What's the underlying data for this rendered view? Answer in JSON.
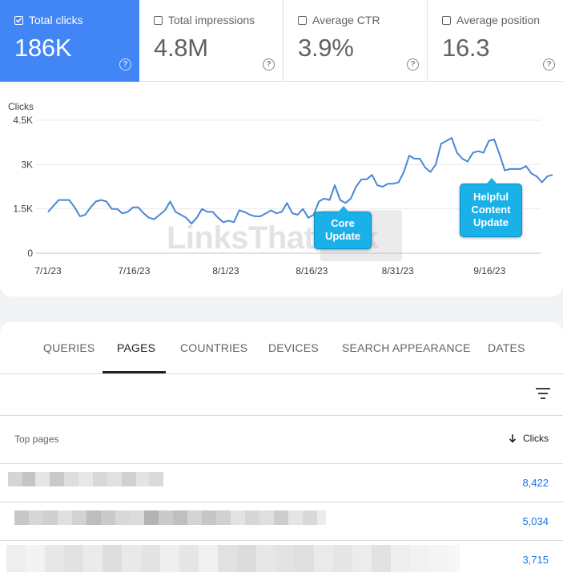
{
  "metrics": [
    {
      "label": "Total clicks",
      "value": "186K",
      "checked": true
    },
    {
      "label": "Total impressions",
      "value": "4.8M",
      "checked": false
    },
    {
      "label": "Average CTR",
      "value": "3.9%",
      "checked": false
    },
    {
      "label": "Average position",
      "value": "16.3",
      "checked": false
    }
  ],
  "help_glyph": "?",
  "chart_data": {
    "type": "line",
    "ylabel": "Clicks",
    "y_ticks": [
      "0",
      "1.5K",
      "3K",
      "4.5K"
    ],
    "y_tick_values": [
      0,
      1500,
      3000,
      4500
    ],
    "ylim": [
      0,
      4500
    ],
    "x_tick_labels": [
      "7/1/23",
      "7/16/23",
      "8/1/23",
      "8/16/23",
      "8/31/23",
      "9/16/23"
    ],
    "x_tick_days": [
      0,
      15,
      31,
      46,
      61,
      77
    ],
    "xlim_days": [
      0,
      88
    ],
    "grid": true,
    "line_color": "#4a86d8",
    "series": [
      {
        "values": [
          1400,
          1600,
          1800,
          1800,
          1800,
          1550,
          1250,
          1300,
          1550,
          1750,
          1800,
          1750,
          1500,
          1500,
          1350,
          1400,
          1550,
          1550,
          1350,
          1200,
          1150,
          1300,
          1450,
          1750,
          1400,
          1300,
          1200,
          1000,
          1200,
          1500,
          1400,
          1400,
          1200,
          1050,
          1100,
          1050,
          1450,
          1400,
          1300,
          1250,
          1250,
          1350,
          1450,
          1350,
          1400,
          1700,
          1350,
          1300,
          1500,
          1200,
          1300,
          1750,
          1850,
          1800,
          2300,
          1800,
          1700,
          1850,
          2250,
          2500,
          2500,
          2650,
          2300,
          2250,
          2350,
          2350,
          2400,
          2750,
          3300,
          3200,
          3200,
          2900,
          2750,
          3000,
          3700,
          3800,
          3900,
          3400,
          3200,
          3100,
          3400,
          3450,
          3400,
          3800,
          3850,
          3350,
          2800,
          2850,
          2850,
          2850,
          2950,
          2700,
          2600,
          2400,
          2600,
          2650
        ]
      }
    ]
  },
  "callouts": {
    "core": {
      "line1": "Core",
      "line2": "Update"
    },
    "hcu": {
      "line1": "Helpful",
      "line2": "Content",
      "line3": "Update"
    }
  },
  "tabs": [
    {
      "label": "QUERIES",
      "active": false
    },
    {
      "label": "PAGES",
      "active": true
    },
    {
      "label": "COUNTRIES",
      "active": false
    },
    {
      "label": "DEVICES",
      "active": false
    },
    {
      "label": "SEARCH APPEARANCE",
      "active": false
    },
    {
      "label": "DATES",
      "active": false
    }
  ],
  "table": {
    "header_label": "Top pages",
    "header_metric": "Clicks",
    "rows": [
      {
        "clicks": "8,422"
      },
      {
        "clicks": "5,034"
      },
      {
        "clicks": "3,715"
      }
    ]
  },
  "colors": {
    "accent": "#4285f4",
    "link": "#1a73e8",
    "callout": "#1ab0e8"
  }
}
